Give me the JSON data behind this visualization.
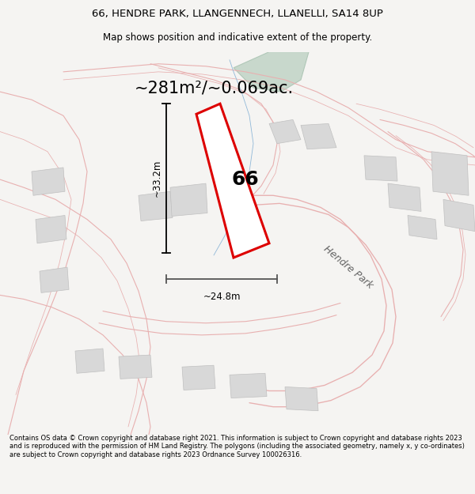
{
  "title_line1": "66, HENDRE PARK, LLANGENNECH, LLANELLI, SA14 8UP",
  "title_line2": "Map shows position and indicative extent of the property.",
  "area_text": "~281m²/~0.069ac.",
  "label_66": "66",
  "dim_width": "~24.8m",
  "dim_height": "~33.2m",
  "road_label": "Hendre Park",
  "footer_text": "Contains OS data © Crown copyright and database right 2021. This information is subject to Crown copyright and database rights 2023 and is reproduced with the permission of HM Land Registry. The polygons (including the associated geometry, namely x, y co-ordinates) are subject to Crown copyright and database rights 2023 Ordnance Survey 100026316.",
  "bg_color": "#f5f4f2",
  "map_bg": "#ffffff",
  "road_color": "#e8b0b0",
  "road_lw": 0.8,
  "gray_fill": "#d8d8d8",
  "gray_edge": "#c0c0c0",
  "green_fill": "#c8d8cc",
  "green_edge": "#b0c8b8",
  "prop_color": "#dd0000",
  "prop_fill": "#ffffff",
  "title_fontsize": 9.5,
  "subtitle_fontsize": 8.5,
  "area_fontsize": 15,
  "label_fontsize": 18,
  "footer_fontsize": 6.0
}
